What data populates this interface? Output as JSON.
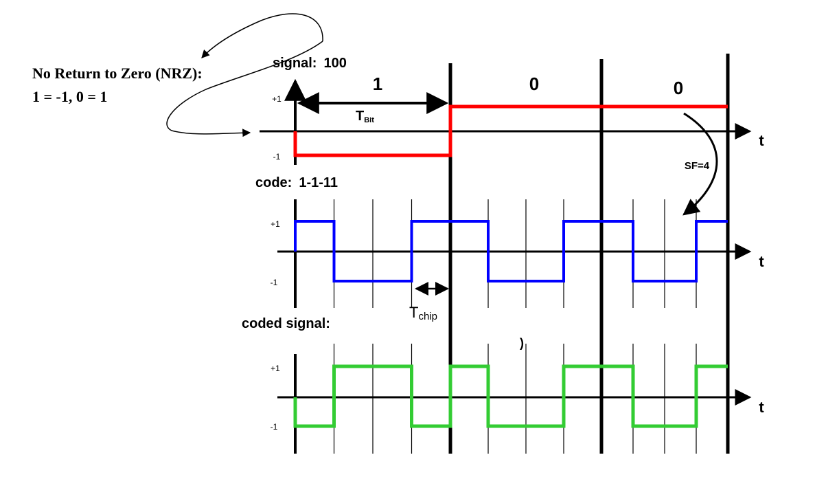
{
  "nrz": {
    "line1": "No Return to Zero (NRZ):",
    "line2": "1 = -1, 0 = 1"
  },
  "signal": {
    "title": "signal:",
    "value": "100",
    "bits": [
      "1",
      "0",
      "0"
    ],
    "levels": [
      -1,
      1,
      1
    ],
    "tbit_main": "T",
    "tbit_sub": "Bit",
    "color": "#ff0000"
  },
  "code": {
    "title": "code:",
    "value": "1-1-11",
    "chips": [
      1,
      -1,
      -1,
      1,
      1,
      -1,
      -1,
      1,
      1,
      -1,
      -1,
      1
    ],
    "color": "#0000ff"
  },
  "coded": {
    "title": "coded signal:",
    "chips": [
      -1,
      1,
      1,
      -1,
      1,
      -1,
      -1,
      1,
      1,
      -1,
      -1,
      1
    ],
    "color": "#33cc33"
  },
  "tchip": {
    "main": "T",
    "sub": "chip"
  },
  "sf_label": "SF=4",
  "axis": {
    "plus": "+1",
    "minus": "-1",
    "time": "t"
  },
  "stray_mark": ")"
}
